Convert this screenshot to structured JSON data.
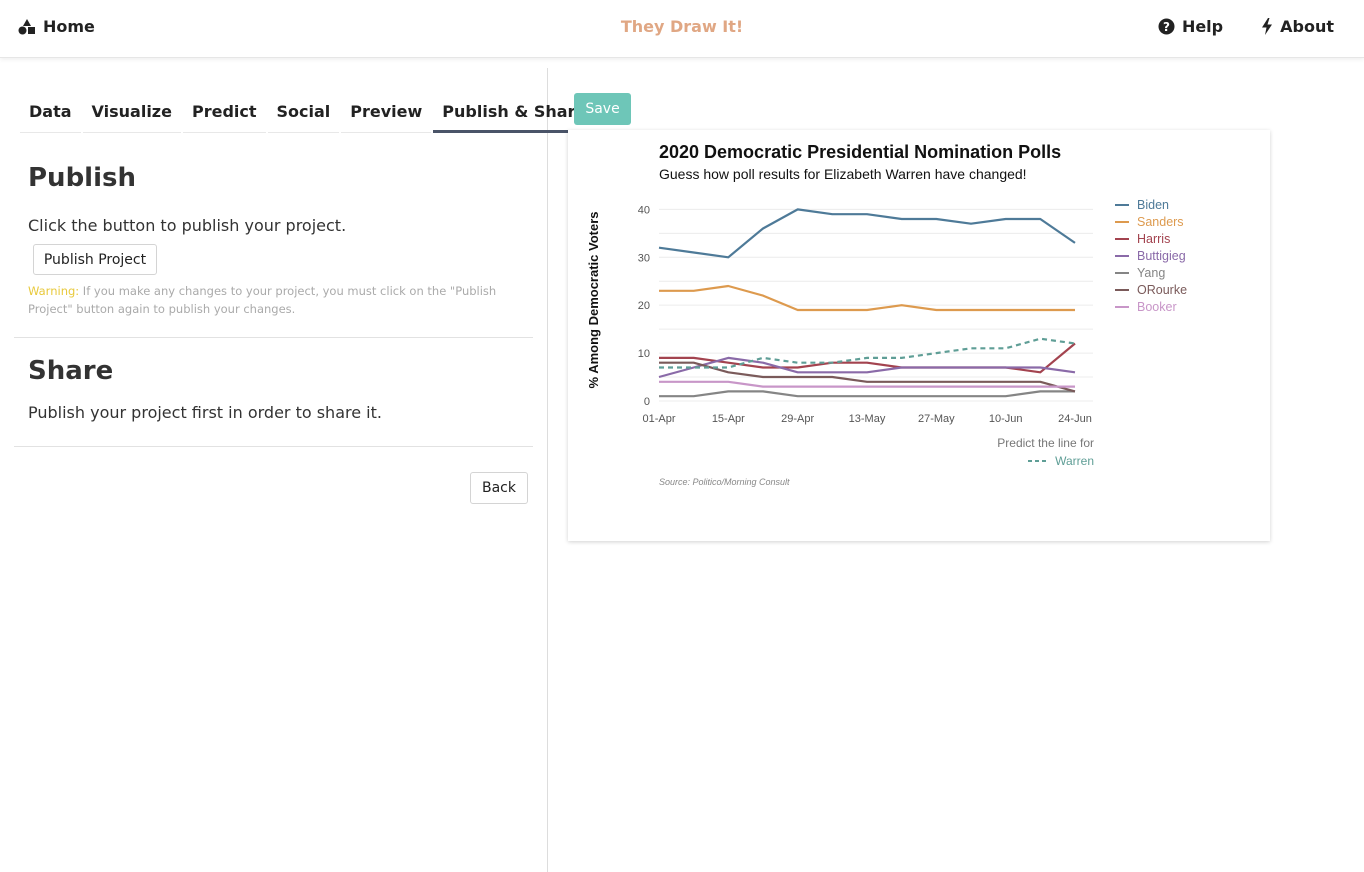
{
  "nav": {
    "home_label": "Home",
    "brand": "They Draw It!",
    "help_label": "Help",
    "about_label": "About"
  },
  "tabs": [
    {
      "label": "Data"
    },
    {
      "label": "Visualize"
    },
    {
      "label": "Predict"
    },
    {
      "label": "Social"
    },
    {
      "label": "Preview"
    },
    {
      "label": "Publish & Share",
      "active": true
    }
  ],
  "publish": {
    "title": "Publish",
    "description": "Click the button to publish your project.",
    "button_label": "Publish Project",
    "warning_label": "Warning:",
    "warning_text": " If you make any changes to your project, you must click on the \"Publish Project\" button again to publish your changes."
  },
  "share": {
    "title": "Share",
    "description": "Publish your project first in order to share it."
  },
  "back_label": "Back",
  "save_label": "Save",
  "chart_data": {
    "type": "line",
    "title": "2020 Democratic Presidential Nomination Polls",
    "subtitle": "Guess how poll results for Elizabeth Warren have changed!",
    "ylabel": "% Among Democratic Voters",
    "xlabel": "",
    "x": [
      "01-Apr",
      "08-Apr",
      "15-Apr",
      "22-Apr",
      "29-Apr",
      "06-May",
      "13-May",
      "20-May",
      "27-May",
      "03-Jun",
      "10-Jun",
      "17-Jun",
      "24-Jun"
    ],
    "x_ticks": [
      "01-Apr",
      "15-Apr",
      "29-Apr",
      "13-May",
      "27-May",
      "10-Jun",
      "24-Jun"
    ],
    "y_ticks": [
      0,
      10,
      20,
      30,
      40
    ],
    "ylim": [
      0,
      43
    ],
    "grid": true,
    "legend_position": "right",
    "series": [
      {
        "name": "Biden",
        "color": "#4e7a98",
        "values": [
          32,
          31,
          30,
          36,
          40,
          39,
          39,
          38,
          38,
          37,
          38,
          38,
          33
        ]
      },
      {
        "name": "Sanders",
        "color": "#dd9a4e",
        "values": [
          23,
          23,
          24,
          22,
          19,
          19,
          19,
          20,
          19,
          19,
          19,
          19,
          19
        ]
      },
      {
        "name": "Harris",
        "color": "#a3434f",
        "values": [
          9,
          9,
          8,
          7,
          7,
          8,
          8,
          7,
          7,
          7,
          7,
          6,
          12
        ]
      },
      {
        "name": "Buttigieg",
        "color": "#8a6aa8",
        "values": [
          5,
          7,
          9,
          8,
          6,
          6,
          6,
          7,
          7,
          7,
          7,
          7,
          6
        ]
      },
      {
        "name": "Yang",
        "color": "#858585",
        "values": [
          1,
          1,
          2,
          2,
          1,
          1,
          1,
          1,
          1,
          1,
          1,
          2,
          2
        ]
      },
      {
        "name": "ORourke",
        "color": "#7a5a5a",
        "values": [
          8,
          8,
          6,
          5,
          5,
          5,
          4,
          4,
          4,
          4,
          4,
          4,
          2
        ]
      },
      {
        "name": "Booker",
        "color": "#c896c8",
        "values": [
          4,
          4,
          4,
          3,
          3,
          3,
          3,
          3,
          3,
          3,
          3,
          3,
          3
        ]
      }
    ],
    "predict_series": {
      "name": "Warren",
      "color": "#5f9e96",
      "style": "dashed",
      "values": [
        7,
        7,
        7,
        9,
        8,
        8,
        9,
        9,
        10,
        11,
        11,
        13,
        12
      ]
    },
    "predict_label": "Predict the line for",
    "source": "Source: Politico/Morning Consult"
  }
}
